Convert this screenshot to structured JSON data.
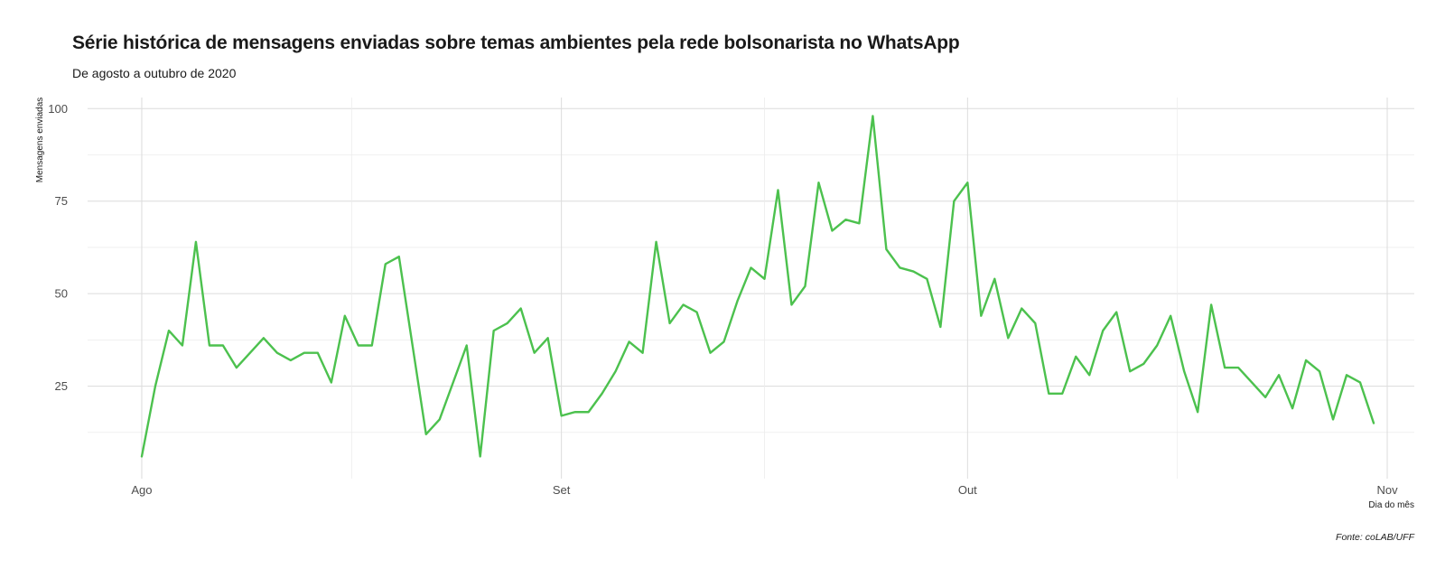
{
  "chart_data": {
    "type": "line",
    "title": "Série histórica de mensagens enviadas sobre temas ambientes pela rede bolsonarista no WhatsApp",
    "subtitle": "De agosto a outubro de 2020",
    "xlabel": "Dia do mês",
    "ylabel": "Mensagens enviadas",
    "caption": "Fonte: coLAB/UFF",
    "x_start": "2020-08-01",
    "x_end": "2020-10-31",
    "xlim": [
      "2020-07-28",
      "2020-11-03"
    ],
    "ylim": [
      0,
      103
    ],
    "x_ticks": [
      {
        "label": "Ago",
        "date": "2020-08-01"
      },
      {
        "label": "Set",
        "date": "2020-09-01"
      },
      {
        "label": "Out",
        "date": "2020-10-01"
      },
      {
        "label": "Nov",
        "date": "2020-11-01"
      }
    ],
    "y_ticks": [
      25,
      50,
      75,
      100
    ],
    "grid": true,
    "line_color": "#4cc14e",
    "values": [
      6,
      25,
      40,
      36,
      64,
      36,
      36,
      30,
      34,
      38,
      34,
      32,
      34,
      34,
      26,
      44,
      36,
      36,
      58,
      60,
      36,
      12,
      16,
      26,
      36,
      6,
      40,
      42,
      46,
      34,
      38,
      17,
      18,
      18,
      23,
      29,
      37,
      34,
      64,
      42,
      47,
      45,
      34,
      37,
      48,
      57,
      54,
      78,
      47,
      52,
      80,
      67,
      70,
      69,
      98,
      62,
      57,
      56,
      54,
      41,
      75,
      80,
      44,
      54,
      38,
      46,
      42,
      23,
      23,
      33,
      28,
      40,
      45,
      29,
      31,
      36,
      44,
      29,
      18,
      47,
      30,
      30,
      26,
      22,
      28,
      19,
      32,
      29,
      16,
      28,
      26,
      15
    ]
  }
}
